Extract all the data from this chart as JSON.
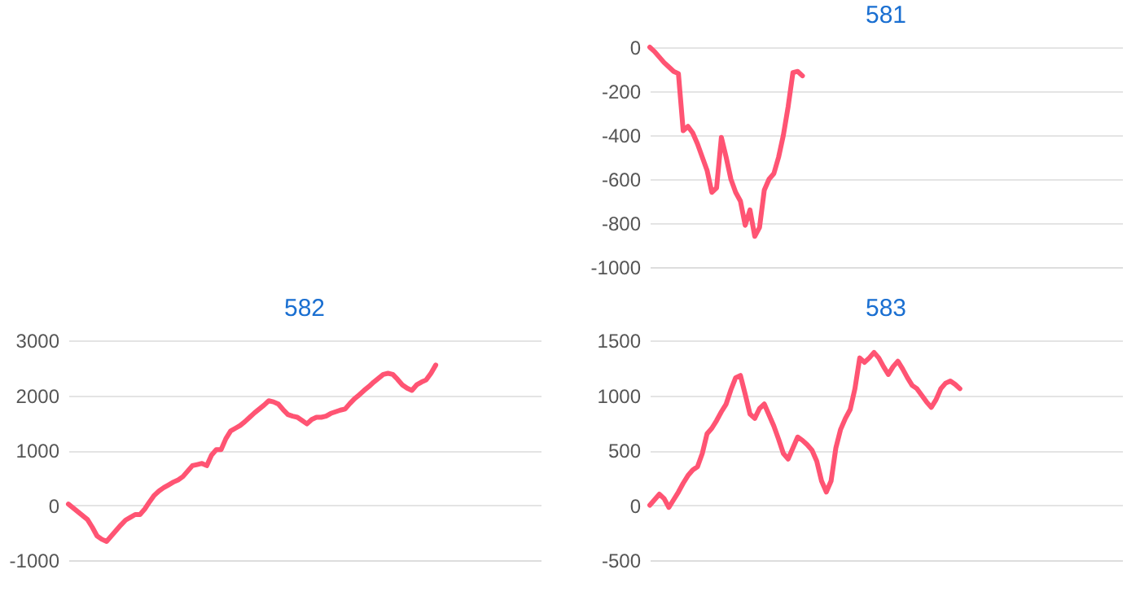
{
  "chart_data": [
    {
      "type": "line",
      "title": "581",
      "categories": [
        null,
        null,
        null,
        null,
        null,
        null,
        null,
        null,
        null,
        null,
        null,
        null,
        null,
        null,
        null,
        null,
        null,
        null,
        null,
        null,
        null,
        null,
        null,
        null,
        null,
        null,
        null,
        null,
        null,
        null,
        null,
        null,
        null,
        null,
        null,
        null,
        null,
        null,
        null,
        null,
        null,
        null,
        null,
        null,
        null,
        null,
        null,
        null,
        null,
        null,
        null,
        null,
        null,
        null,
        null,
        null,
        null,
        null,
        null,
        null,
        null,
        null,
        null,
        null,
        null,
        null,
        null,
        null,
        null,
        null,
        null,
        null,
        null,
        null,
        null,
        null,
        null,
        null,
        null,
        null,
        null,
        null,
        null,
        null,
        null,
        null,
        null,
        null,
        null,
        null,
        null,
        null,
        null,
        null,
        null,
        null,
        null,
        null,
        null,
        null
      ],
      "ylim": [
        -1000,
        0
      ],
      "yticks": [
        0,
        -200,
        -400,
        -600,
        -800,
        -1000
      ],
      "grid": "y",
      "series": [
        {
          "color": "#ff5473",
          "values": [
            0,
            -20,
            -45,
            -70,
            -90,
            -110,
            -120,
            -380,
            -360,
            -390,
            -440,
            -500,
            -560,
            -660,
            -640,
            -410,
            -500,
            -600,
            -660,
            -700,
            -810,
            -740,
            -860,
            -820,
            -650,
            -600,
            -575,
            -500,
            -400,
            -270,
            -115,
            -110,
            -130,
            null,
            null,
            null,
            null,
            null,
            null,
            null,
            null,
            null,
            null,
            null,
            null,
            null,
            null,
            null,
            null,
            null,
            null,
            null,
            null,
            null,
            null,
            null,
            null,
            null,
            null,
            null,
            null,
            null,
            null,
            null,
            null,
            null,
            null,
            null,
            null,
            null,
            null,
            null,
            null,
            null,
            null,
            null,
            null,
            null,
            null,
            null,
            null,
            null,
            null,
            null,
            null,
            null,
            null,
            null,
            null,
            null,
            null,
            null,
            null,
            null,
            null,
            null,
            null,
            null,
            null,
            null
          ]
        }
      ]
    },
    {
      "type": "line",
      "title": "582",
      "categories": [
        null,
        null,
        null,
        null,
        null,
        null,
        null,
        null,
        null,
        null,
        null,
        null,
        null,
        null,
        null,
        null,
        null,
        null,
        null,
        null,
        null,
        null,
        null,
        null,
        null,
        null,
        null,
        null,
        null,
        null,
        null,
        null,
        null,
        null,
        null,
        null,
        null,
        null,
        null,
        null,
        null,
        null,
        null,
        null,
        null,
        null,
        null,
        null,
        null,
        null,
        null,
        null,
        null,
        null,
        null,
        null,
        null,
        null,
        null,
        null,
        null,
        null,
        null,
        null,
        null,
        null,
        null,
        null,
        null,
        null,
        null,
        null,
        null,
        null,
        null,
        null,
        null,
        null,
        null,
        null,
        null,
        null,
        null,
        null,
        null,
        null,
        null,
        null,
        null,
        null,
        null,
        null,
        null,
        null,
        null,
        null,
        null,
        null,
        null,
        null
      ],
      "ylim": [
        -1000,
        3000
      ],
      "yticks": [
        -1000,
        0,
        1000,
        2000,
        3000
      ],
      "grid": "y",
      "series": [
        {
          "color": "#ff5473",
          "values": [
            20,
            -50,
            -120,
            -190,
            -260,
            -400,
            -560,
            -620,
            -660,
            -560,
            -460,
            -360,
            -270,
            -220,
            -170,
            -170,
            -70,
            60,
            180,
            260,
            320,
            370,
            420,
            460,
            520,
            620,
            720,
            740,
            760,
            720,
            910,
            1010,
            1010,
            1210,
            1350,
            1400,
            1450,
            1520,
            1600,
            1680,
            1750,
            1820,
            1900,
            1880,
            1840,
            1740,
            1650,
            1620,
            1600,
            1540,
            1480,
            1560,
            1600,
            1600,
            1620,
            1670,
            1700,
            1730,
            1750,
            1850,
            1940,
            2010,
            2090,
            2160,
            2240,
            2310,
            2380,
            2400,
            2380,
            2290,
            2190,
            2130,
            2090,
            2190,
            2240,
            2280,
            2400,
            2550,
            null,
            null,
            null,
            null,
            null,
            null,
            null,
            null,
            null,
            null,
            null,
            null,
            null,
            null,
            null,
            null,
            null,
            null,
            null,
            null,
            null,
            null
          ]
        }
      ]
    },
    {
      "type": "line",
      "title": "583",
      "categories": [
        null,
        null,
        null,
        null,
        null,
        null,
        null,
        null,
        null,
        null,
        null,
        null,
        null,
        null,
        null,
        null,
        null,
        null,
        null,
        null,
        null,
        null,
        null,
        null,
        null,
        null,
        null,
        null,
        null,
        null,
        null,
        null,
        null,
        null,
        null,
        null,
        null,
        null,
        null,
        null,
        null,
        null,
        null,
        null,
        null,
        null,
        null,
        null,
        null,
        null,
        null,
        null,
        null,
        null,
        null,
        null,
        null,
        null,
        null,
        null,
        null,
        null,
        null,
        null,
        null,
        null,
        null,
        null,
        null,
        null,
        null,
        null,
        null,
        null,
        null,
        null,
        null,
        null,
        null,
        null,
        null,
        null,
        null,
        null,
        null,
        null,
        null,
        null,
        null,
        null,
        null,
        null,
        null,
        null,
        null,
        null,
        null,
        null,
        null,
        null
      ],
      "ylim": [
        -500,
        1500
      ],
      "yticks": [
        -500,
        0,
        500,
        1000,
        1500
      ],
      "grid": "y",
      "series": [
        {
          "color": "#ff5473",
          "values": [
            0,
            50,
            100,
            60,
            -20,
            50,
            120,
            200,
            270,
            320,
            350,
            470,
            650,
            700,
            770,
            850,
            920,
            1050,
            1160,
            1180,
            1010,
            830,
            790,
            880,
            920,
            820,
            720,
            600,
            470,
            420,
            520,
            620,
            590,
            550,
            500,
            400,
            220,
            120,
            220,
            520,
            690,
            790,
            870,
            1060,
            1340,
            1300,
            1340,
            1390,
            1340,
            1260,
            1190,
            1260,
            1310,
            1240,
            1160,
            1090,
            1060,
            1000,
            940,
            890,
            960,
            1060,
            1110,
            1130,
            1100,
            1060,
            null,
            null,
            null,
            null,
            null,
            null,
            null,
            null,
            null,
            null,
            null,
            null,
            null,
            null,
            null,
            null,
            null,
            null,
            null,
            null,
            null,
            null,
            null,
            null,
            null,
            null,
            null,
            null,
            null,
            null,
            null,
            null,
            null,
            null
          ]
        }
      ]
    }
  ]
}
